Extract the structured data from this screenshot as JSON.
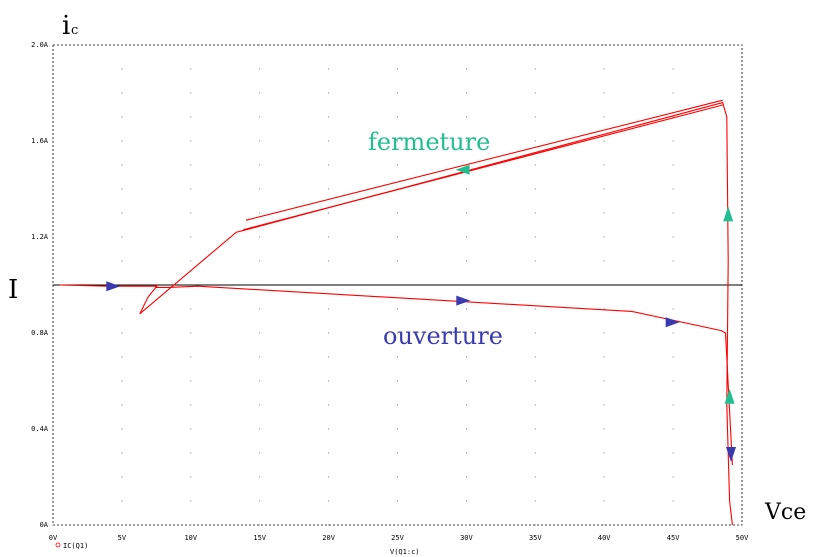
{
  "chart_data": {
    "type": "line",
    "title": "",
    "xlabel": "V(Q1:c)",
    "ylabel": "",
    "xlim": [
      0,
      50
    ],
    "ylim": [
      0,
      2.0
    ],
    "x_tick_labels": [
      "0V",
      "5V",
      "10V",
      "15V",
      "20V",
      "25V",
      "30V",
      "35V",
      "40V",
      "45V",
      "50V"
    ],
    "y_tick_labels": [
      "0A",
      "0.4A",
      "0.8A",
      "1.2A",
      "1.6A",
      "2.0A"
    ],
    "grid": "dotted",
    "legend": {
      "marker": "o",
      "label": "IC(Q1)",
      "placement": "bottom-left"
    },
    "series": [
      {
        "name": "IC(Q1)",
        "color": "#ff0000",
        "segments": [
          {
            "x": [
              0.5,
              4,
              7.4,
              7.6,
              6.9,
              6.3
            ],
            "y": [
              1.0,
              0.995,
              0.995,
              1.0,
              0.95,
              0.88
            ]
          },
          {
            "x": [
              6.3,
              13.3,
              14.0,
              48.6,
              48.9,
              49.0,
              48.9,
              49.1,
              49.3
            ],
            "y": [
              0.88,
              1.22,
              1.23,
              1.76,
              1.7,
              1.1,
              0.5,
              0.1,
              0.0
            ]
          },
          {
            "x": [
              14.0,
              48.6
            ],
            "y": [
              1.27,
              1.77
            ]
          },
          {
            "x": [
              13.8,
              48.6
            ],
            "y": [
              1.23,
              1.75
            ]
          },
          {
            "x": [
              7.4,
              8.4,
              10.5,
              42.0,
              48.5,
              48.8,
              49.3
            ],
            "y": [
              0.99,
              0.99,
              0.995,
              0.89,
              0.81,
              0.8,
              0.25
            ]
          }
        ]
      }
    ],
    "reference_line": {
      "name": "I",
      "y": 1.0,
      "color": "#000000"
    },
    "annotations": {
      "y_axis": "i",
      "y_axis_sub": "c",
      "x_axis": "Vce",
      "I_label": "I",
      "closing_label": "fermeture",
      "closing_color": "#1fbf8f",
      "opening_label": "ouverture",
      "opening_color": "#3a3ab0"
    }
  }
}
